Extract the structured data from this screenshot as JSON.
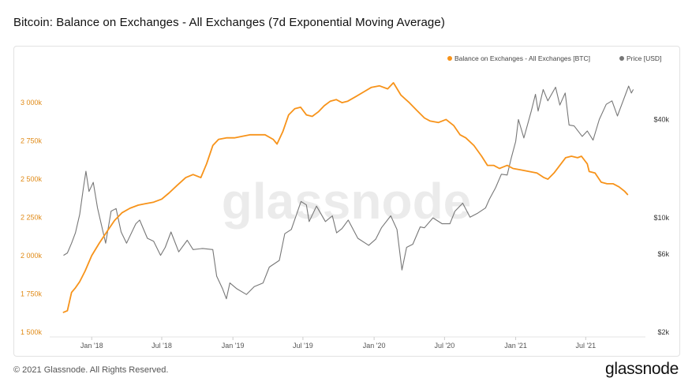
{
  "page": {
    "title": "Bitcoin: Balance on Exchanges - All Exchanges (7d Exponential Moving Average)",
    "copyright": "© 2021 Glassnode. All Rights Reserved.",
    "brand": "glassnode",
    "watermark": "glassnode"
  },
  "colors": {
    "balance": "#f7931a",
    "price": "#777777",
    "left_axis_text": "#e08a16",
    "right_axis_text": "#333333",
    "x_axis_text": "#555555"
  },
  "chart_data": {
    "type": "line",
    "title": "Bitcoin: Balance on Exchanges - All Exchanges (7d Exponential Moving Average)",
    "legend_position": "top-right",
    "grid": false,
    "x_ticks": [
      "Jan '18",
      "Jul '18",
      "Jan '19",
      "Jul '19",
      "Jan '20",
      "Jul '20",
      "Jan '21",
      "Jul '21"
    ],
    "y_left": {
      "ticks": [
        "1 500k",
        "1 750k",
        "2 000k",
        "2 250k",
        "2 500k",
        "2 750k",
        "3 000k"
      ],
      "range": [
        1500000,
        3150000
      ]
    },
    "y_right": {
      "scale": "log",
      "ticks": [
        "$2k",
        "$6k",
        "$10k",
        "$40k"
      ],
      "tick_values": [
        2000,
        6000,
        10000,
        40000
      ],
      "range": [
        2000,
        70000
      ]
    },
    "series": [
      {
        "name": "Balance on Exchanges - All Exchanges [BTC]",
        "axis": "left",
        "points": [
          [
            "2017-10-20",
            1630000
          ],
          [
            "2017-10-30",
            1640000
          ],
          [
            "2017-11-10",
            1760000
          ],
          [
            "2017-11-20",
            1790000
          ],
          [
            "2017-12-01",
            1830000
          ],
          [
            "2017-12-15",
            1900000
          ],
          [
            "2018-01-01",
            2000000
          ],
          [
            "2018-01-20",
            2080000
          ],
          [
            "2018-02-10",
            2160000
          ],
          [
            "2018-03-01",
            2230000
          ],
          [
            "2018-03-20",
            2280000
          ],
          [
            "2018-04-10",
            2310000
          ],
          [
            "2018-05-01",
            2330000
          ],
          [
            "2018-05-20",
            2340000
          ],
          [
            "2018-06-10",
            2350000
          ],
          [
            "2018-07-01",
            2370000
          ],
          [
            "2018-07-20",
            2410000
          ],
          [
            "2018-08-10",
            2460000
          ],
          [
            "2018-09-01",
            2510000
          ],
          [
            "2018-09-20",
            2530000
          ],
          [
            "2018-10-10",
            2510000
          ],
          [
            "2018-10-25",
            2600000
          ],
          [
            "2018-11-10",
            2720000
          ],
          [
            "2018-11-25",
            2760000
          ],
          [
            "2018-12-15",
            2770000
          ],
          [
            "2019-01-05",
            2770000
          ],
          [
            "2019-01-25",
            2780000
          ],
          [
            "2019-02-15",
            2790000
          ],
          [
            "2019-03-05",
            2790000
          ],
          [
            "2019-03-25",
            2790000
          ],
          [
            "2019-04-15",
            2760000
          ],
          [
            "2019-04-25",
            2730000
          ],
          [
            "2019-05-10",
            2810000
          ],
          [
            "2019-05-25",
            2920000
          ],
          [
            "2019-06-10",
            2960000
          ],
          [
            "2019-06-25",
            2970000
          ],
          [
            "2019-07-10",
            2920000
          ],
          [
            "2019-07-25",
            2910000
          ],
          [
            "2019-08-10",
            2940000
          ],
          [
            "2019-08-25",
            2980000
          ],
          [
            "2019-09-10",
            3010000
          ],
          [
            "2019-09-25",
            3020000
          ],
          [
            "2019-10-10",
            3000000
          ],
          [
            "2019-10-25",
            3010000
          ],
          [
            "2019-11-15",
            3040000
          ],
          [
            "2019-12-05",
            3070000
          ],
          [
            "2019-12-25",
            3100000
          ],
          [
            "2020-01-15",
            3110000
          ],
          [
            "2020-02-05",
            3090000
          ],
          [
            "2020-02-20",
            3130000
          ],
          [
            "2020-03-10",
            3050000
          ],
          [
            "2020-04-01",
            3000000
          ],
          [
            "2020-04-20",
            2950000
          ],
          [
            "2020-05-10",
            2900000
          ],
          [
            "2020-05-25",
            2880000
          ],
          [
            "2020-06-15",
            2870000
          ],
          [
            "2020-07-05",
            2890000
          ],
          [
            "2020-07-25",
            2850000
          ],
          [
            "2020-08-10",
            2790000
          ],
          [
            "2020-08-25",
            2770000
          ],
          [
            "2020-09-15",
            2720000
          ],
          [
            "2020-10-05",
            2650000
          ],
          [
            "2020-10-20",
            2590000
          ],
          [
            "2020-11-05",
            2590000
          ],
          [
            "2020-11-20",
            2570000
          ],
          [
            "2020-12-10",
            2590000
          ],
          [
            "2020-12-25",
            2570000
          ],
          [
            "2021-01-15",
            2560000
          ],
          [
            "2021-02-05",
            2550000
          ],
          [
            "2021-02-25",
            2540000
          ],
          [
            "2021-03-15",
            2510000
          ],
          [
            "2021-03-25",
            2500000
          ],
          [
            "2021-04-10",
            2540000
          ],
          [
            "2021-04-25",
            2590000
          ],
          [
            "2021-05-10",
            2640000
          ],
          [
            "2021-05-25",
            2650000
          ],
          [
            "2021-06-10",
            2640000
          ],
          [
            "2021-06-20",
            2650000
          ],
          [
            "2021-07-05",
            2600000
          ],
          [
            "2021-07-10",
            2550000
          ],
          [
            "2021-07-25",
            2540000
          ],
          [
            "2021-08-10",
            2480000
          ],
          [
            "2021-08-25",
            2470000
          ],
          [
            "2021-09-10",
            2470000
          ],
          [
            "2021-09-25",
            2450000
          ],
          [
            "2021-10-10",
            2420000
          ],
          [
            "2021-10-17",
            2400000
          ]
        ]
      },
      {
        "name": "Price [USD]",
        "axis": "right",
        "points": [
          [
            "2017-10-20",
            5900
          ],
          [
            "2017-10-30",
            6100
          ],
          [
            "2017-11-10",
            7000
          ],
          [
            "2017-11-20",
            8100
          ],
          [
            "2017-12-01",
            10500
          ],
          [
            "2017-12-10",
            15000
          ],
          [
            "2017-12-17",
            19300
          ],
          [
            "2017-12-25",
            14500
          ],
          [
            "2018-01-05",
            16500
          ],
          [
            "2018-01-16",
            11500
          ],
          [
            "2018-02-06",
            7000
          ],
          [
            "2018-02-20",
            11000
          ],
          [
            "2018-03-05",
            11400
          ],
          [
            "2018-03-18",
            8200
          ],
          [
            "2018-04-01",
            7000
          ],
          [
            "2018-04-25",
            9200
          ],
          [
            "2018-05-05",
            9700
          ],
          [
            "2018-05-25",
            7500
          ],
          [
            "2018-06-10",
            7200
          ],
          [
            "2018-06-28",
            5900
          ],
          [
            "2018-07-10",
            6600
          ],
          [
            "2018-07-25",
            8200
          ],
          [
            "2018-08-14",
            6200
          ],
          [
            "2018-09-05",
            7300
          ],
          [
            "2018-09-20",
            6400
          ],
          [
            "2018-10-15",
            6500
          ],
          [
            "2018-11-10",
            6400
          ],
          [
            "2018-11-20",
            4400
          ],
          [
            "2018-12-05",
            3700
          ],
          [
            "2018-12-15",
            3200
          ],
          [
            "2018-12-24",
            4000
          ],
          [
            "2019-01-10",
            3700
          ],
          [
            "2019-02-05",
            3400
          ],
          [
            "2019-02-25",
            3800
          ],
          [
            "2019-03-20",
            4000
          ],
          [
            "2019-04-05",
            5000
          ],
          [
            "2019-05-01",
            5500
          ],
          [
            "2019-05-15",
            8000
          ],
          [
            "2019-06-01",
            8500
          ],
          [
            "2019-06-26",
            12600
          ],
          [
            "2019-07-10",
            12000
          ],
          [
            "2019-07-17",
            9500
          ],
          [
            "2019-08-05",
            11800
          ],
          [
            "2019-08-28",
            9500
          ],
          [
            "2019-09-15",
            10300
          ],
          [
            "2019-09-26",
            8100
          ],
          [
            "2019-10-10",
            8600
          ],
          [
            "2019-10-26",
            9700
          ],
          [
            "2019-11-20",
            7500
          ],
          [
            "2019-12-18",
            6800
          ],
          [
            "2020-01-05",
            7400
          ],
          [
            "2020-01-20",
            8700
          ],
          [
            "2020-02-13",
            10300
          ],
          [
            "2020-02-29",
            8500
          ],
          [
            "2020-03-13",
            4800
          ],
          [
            "2020-03-25",
            6600
          ],
          [
            "2020-04-10",
            6900
          ],
          [
            "2020-04-29",
            8800
          ],
          [
            "2020-05-10",
            8700
          ],
          [
            "2020-06-01",
            10000
          ],
          [
            "2020-06-25",
            9200
          ],
          [
            "2020-07-15",
            9200
          ],
          [
            "2020-07-28",
            11000
          ],
          [
            "2020-08-17",
            12300
          ],
          [
            "2020-09-05",
            10100
          ],
          [
            "2020-09-25",
            10700
          ],
          [
            "2020-10-15",
            11500
          ],
          [
            "2020-10-25",
            13000
          ],
          [
            "2020-11-10",
            15300
          ],
          [
            "2020-11-25",
            18500
          ],
          [
            "2020-12-10",
            18300
          ],
          [
            "2020-12-20",
            23000
          ],
          [
            "2021-01-01",
            29400
          ],
          [
            "2021-01-08",
            40000
          ],
          [
            "2021-01-22",
            30800
          ],
          [
            "2021-02-10",
            44800
          ],
          [
            "2021-02-21",
            57000
          ],
          [
            "2021-02-28",
            45000
          ],
          [
            "2021-03-13",
            61000
          ],
          [
            "2021-03-25",
            52000
          ],
          [
            "2021-04-14",
            63000
          ],
          [
            "2021-04-25",
            49000
          ],
          [
            "2021-05-09",
            58000
          ],
          [
            "2021-05-19",
            37000
          ],
          [
            "2021-06-01",
            36500
          ],
          [
            "2021-06-22",
            31500
          ],
          [
            "2021-07-05",
            34000
          ],
          [
            "2021-07-20",
            29900
          ],
          [
            "2021-08-05",
            40000
          ],
          [
            "2021-08-23",
            49500
          ],
          [
            "2021-09-07",
            52000
          ],
          [
            "2021-09-21",
            42000
          ],
          [
            "2021-10-05",
            51500
          ],
          [
            "2021-10-12",
            57000
          ],
          [
            "2021-10-20",
            64000
          ],
          [
            "2021-10-27",
            58000
          ],
          [
            "2021-11-01",
            61000
          ]
        ]
      }
    ]
  }
}
